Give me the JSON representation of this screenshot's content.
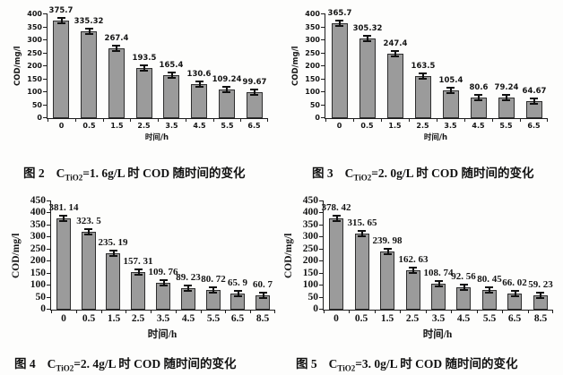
{
  "page": {
    "background": "#fdfdfc"
  },
  "chart_data": [
    {
      "figure_label": "图 2",
      "type": "bar",
      "categories": [
        "0",
        "0.5",
        "1.5",
        "2.5",
        "3.5",
        "4.5",
        "5.5",
        "6.5"
      ],
      "values": [
        375.7,
        335.32,
        267.4,
        193.5,
        165.4,
        130.6,
        109.24,
        99.67
      ],
      "value_labels": [
        "375.7",
        "335.32",
        "267.4",
        "193.5",
        "165.4",
        "130.6",
        "109.24",
        "99.67"
      ],
      "xlabel": "时间/h",
      "ylabel": "COD/mg/l",
      "ylim": [
        0,
        400
      ],
      "ytick_step": 50,
      "grid": false,
      "legend": false,
      "error_bars": true,
      "bar_color": "#9b9b9b",
      "caption": {
        "fig": "图 2",
        "symbol": "C",
        "subscript": "TiO2",
        "rest": "=1. 6g/L 时 COD 随时间的变化"
      }
    },
    {
      "figure_label": "图 3",
      "type": "bar",
      "categories": [
        "0",
        "0.5",
        "1.5",
        "2.5",
        "3.5",
        "4.5",
        "5.5",
        "6.5"
      ],
      "values": [
        365.7,
        305.32,
        247.4,
        163.5,
        105.4,
        80.6,
        79.24,
        64.67
      ],
      "value_labels": [
        "365.7",
        "305.32",
        "247.4",
        "163.5",
        "105.4",
        "80.6",
        "79.24",
        "64.67"
      ],
      "xlabel": "时间/h",
      "ylabel": "COD/mg/l",
      "ylim": [
        0,
        400
      ],
      "ytick_step": 50,
      "grid": false,
      "legend": false,
      "error_bars": true,
      "bar_color": "#9b9b9b",
      "caption": {
        "fig": "图 3",
        "symbol": "C",
        "subscript": "TiO2",
        "rest": "=2. 0g/L 时 COD 随时间的变化"
      }
    },
    {
      "figure_label": "图 4",
      "type": "bar",
      "categories": [
        "0",
        "0.5",
        "1.5",
        "2.5",
        "3.5",
        "4.5",
        "5.5",
        "6.5",
        "8.5"
      ],
      "values": [
        381.14,
        323.5,
        235.19,
        157.31,
        109.76,
        89.23,
        80.72,
        65.9,
        60.7
      ],
      "value_labels": [
        "381. 14",
        "323. 5",
        "235. 19",
        "157. 31",
        "109. 76",
        "89. 23",
        "80. 72",
        "65. 9",
        "60. 7"
      ],
      "xlabel": "时间/h",
      "ylabel": "COD/mg/l",
      "ylim": [
        0,
        450
      ],
      "ytick_step": 50,
      "grid": false,
      "legend": false,
      "error_bars": true,
      "bar_color": "#9b9b9b",
      "caption": {
        "fig": "图 4",
        "symbol": "C",
        "subscript": "TiO2",
        "rest": "=2. 4g/L 时 COD 随时间的变化"
      }
    },
    {
      "figure_label": "图 5",
      "type": "bar",
      "categories": [
        "0",
        "0.5",
        "1.5",
        "2.5",
        "3.5",
        "4.5",
        "5.5",
        "6.5",
        "8.5"
      ],
      "values": [
        378.42,
        315.65,
        239.98,
        162.63,
        108.74,
        92.56,
        80.45,
        66.02,
        59.23
      ],
      "value_labels": [
        "378. 42",
        "315. 65",
        "239. 98",
        "162. 63",
        "108. 74",
        "92. 56",
        "80. 45",
        "66. 02",
        "59. 23"
      ],
      "xlabel": "时间/h",
      "ylabel": "COD/mg/l",
      "ylim": [
        0,
        450
      ],
      "ytick_step": 50,
      "grid": false,
      "legend": false,
      "error_bars": true,
      "bar_color": "#9b9b9b",
      "caption": {
        "fig": "图 5",
        "symbol": "C",
        "subscript": "TiO2",
        "rest": "=3. 0g/L 时 COD 随时间的变化"
      }
    }
  ]
}
